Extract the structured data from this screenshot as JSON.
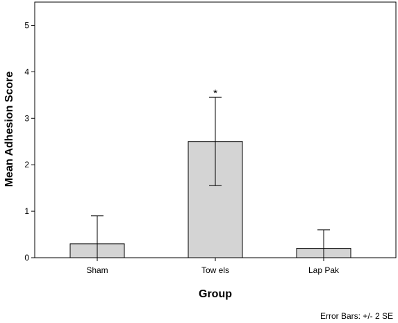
{
  "chart_data": {
    "type": "bar",
    "categories": [
      "Sham",
      "Tow els",
      "Lap Pak"
    ],
    "values": [
      0.3,
      2.5,
      0.2
    ],
    "error_low": [
      0.0,
      1.55,
      0.0
    ],
    "error_high": [
      0.9,
      3.45,
      0.6
    ],
    "annotations": [
      "",
      "*",
      ""
    ],
    "xlabel": "Group",
    "ylabel": "Mean Adhesion Score",
    "ylim": [
      0,
      5.5
    ],
    "yticks": [
      0,
      1,
      2,
      3,
      4,
      5
    ],
    "note": "Error Bars: +/- 2 SE",
    "grid": false,
    "bar_color": "#d4d4d4",
    "bar_stroke": "#000000"
  }
}
